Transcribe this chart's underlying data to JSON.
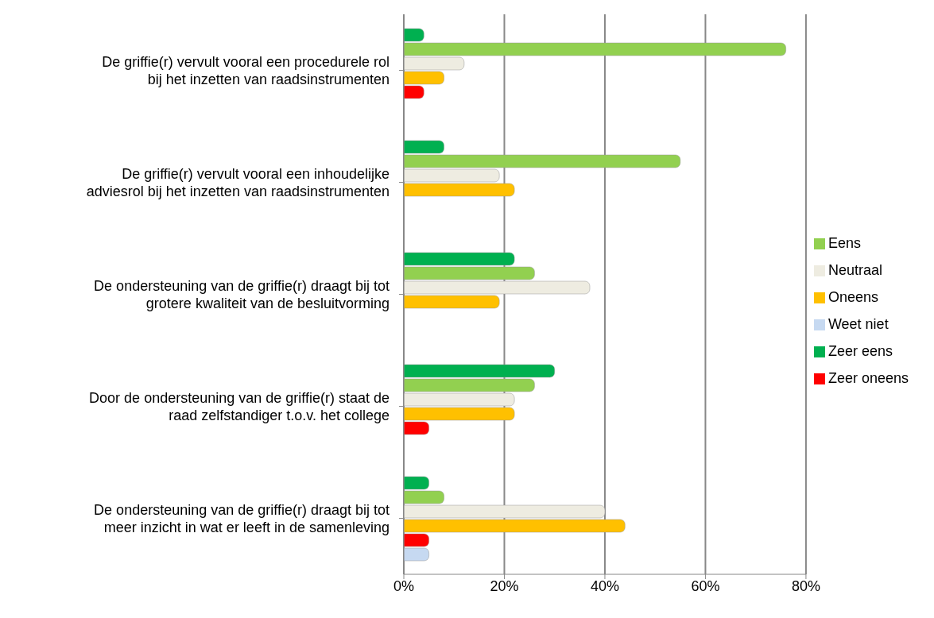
{
  "chart_data": {
    "type": "bar",
    "orientation": "horizontal",
    "categories": [
      "De griffie(r) vervult vooral een procedurele rol bij het inzetten van raadsinstrumenten",
      "De griffie(r) vervult vooral een inhoudelijke adviesrol bij het inzetten van raadsinstrumenten",
      "De ondersteuning van de griffie(r) draagt bij tot grotere kwaliteit van de besluitvorming",
      "Door de ondersteuning van de griffie(r) staat de raad zelfstandiger t.o.v. het college",
      "De ondersteuning van de griffie(r) draagt bij tot meer inzicht in wat er leeft in de samenleving"
    ],
    "series": [
      {
        "name": "Zeer eens",
        "color": "#00b050",
        "values": [
          4,
          8,
          22,
          30,
          5
        ]
      },
      {
        "name": "Eens",
        "color": "#92d050",
        "values": [
          76,
          55,
          26,
          26,
          8
        ]
      },
      {
        "name": "Neutraal",
        "color": "#eeece1",
        "values": [
          12,
          19,
          37,
          22,
          40
        ]
      },
      {
        "name": "Oneens",
        "color": "#ffc000",
        "values": [
          8,
          22,
          19,
          22,
          44
        ]
      },
      {
        "name": "Zeer oneens",
        "color": "#ff0000",
        "values": [
          4,
          0,
          0,
          5,
          5
        ]
      },
      {
        "name": "Weet niet",
        "color": "#c6d9f1",
        "values": [
          0,
          0,
          0,
          0,
          5
        ]
      }
    ],
    "xlim": [
      0,
      80
    ],
    "xticks": [
      {
        "value": 0,
        "label": "0%"
      },
      {
        "value": 20,
        "label": "20%"
      },
      {
        "value": 40,
        "label": "40%"
      },
      {
        "value": 60,
        "label": "60%"
      },
      {
        "value": 80,
        "label": "80%"
      }
    ],
    "grid": "x",
    "legend": "right"
  }
}
